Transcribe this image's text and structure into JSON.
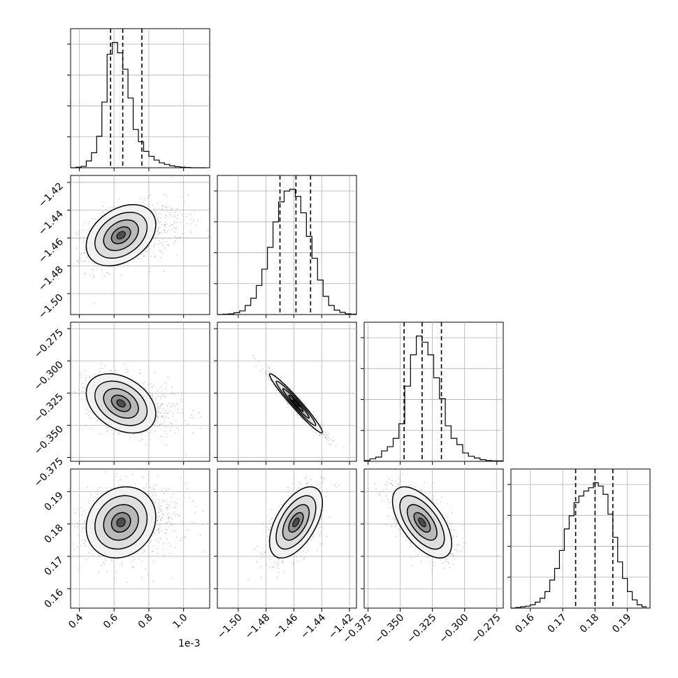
{
  "chart_data": {
    "type": "corner",
    "grid": true,
    "x_offset_label": "1e-3",
    "parameters": [
      {
        "range": [
          0.35,
          1.15
        ],
        "ticks": [
          "0.4",
          "0.6",
          "0.8",
          "1.0"
        ],
        "tick_values": [
          0.4,
          0.6,
          0.8,
          1.0
        ],
        "quantiles": [
          0.58,
          0.65,
          0.76
        ],
        "hist_bins": [
          0.35,
          0.38,
          0.41,
          0.44,
          0.47,
          0.5,
          0.53,
          0.56,
          0.59,
          0.62,
          0.65,
          0.68,
          0.71,
          0.74,
          0.77,
          0.8,
          0.83,
          0.86,
          0.89,
          0.92,
          0.95,
          0.98,
          1.01,
          1.04,
          1.07,
          1.1,
          1.13
        ],
        "hist_counts": [
          0,
          2,
          5,
          25,
          55,
          115,
          240,
          415,
          458,
          420,
          360,
          255,
          140,
          95,
          60,
          42,
          28,
          18,
          12,
          7,
          4,
          2,
          1,
          0,
          0,
          0
        ]
      },
      {
        "range": [
          -1.515,
          -1.415
        ],
        "ticks": [
          "−1.50",
          "−1.48",
          "−1.46",
          "−1.44",
          "−1.42"
        ],
        "tick_values": [
          -1.5,
          -1.48,
          -1.46,
          -1.44,
          -1.42
        ],
        "quantiles": [
          -1.47,
          -1.4585,
          -1.448
        ],
        "hist_bins": [
          -1.515,
          -1.511,
          -1.507,
          -1.503,
          -1.499,
          -1.495,
          -1.491,
          -1.487,
          -1.483,
          -1.479,
          -1.475,
          -1.471,
          -1.467,
          -1.463,
          -1.459,
          -1.455,
          -1.451,
          -1.447,
          -1.443,
          -1.439,
          -1.435,
          -1.431,
          -1.427,
          -1.423,
          -1.419,
          -1.415
        ],
        "hist_counts": [
          0,
          1,
          2,
          5,
          10,
          25,
          45,
          80,
          125,
          185,
          255,
          310,
          340,
          345,
          325,
          280,
          215,
          155,
          95,
          50,
          25,
          12,
          6,
          2,
          1
        ]
      },
      {
        "range": [
          -0.378,
          -0.27
        ],
        "ticks": [
          "−0.375",
          "−0.350",
          "−0.325",
          "−0.300",
          "−0.275"
        ],
        "tick_values": [
          -0.375,
          -0.35,
          -0.325,
          -0.3,
          -0.275
        ],
        "quantiles": [
          -0.347,
          -0.333,
          -0.318
        ],
        "hist_bins": [
          -0.378,
          -0.3735,
          -0.369,
          -0.3645,
          -0.36,
          -0.3555,
          -0.351,
          -0.3465,
          -0.342,
          -0.3375,
          -0.333,
          -0.3285,
          -0.324,
          -0.3195,
          -0.315,
          -0.3105,
          -0.306,
          -0.3015,
          -0.297,
          -0.2925,
          -0.288,
          -0.2835,
          -0.279,
          -0.2745,
          -0.27
        ],
        "hist_counts": [
          2,
          6,
          10,
          25,
          35,
          55,
          90,
          180,
          255,
          300,
          285,
          255,
          200,
          150,
          85,
          55,
          40,
          20,
          12,
          8,
          4,
          2,
          1,
          1
        ]
      },
      {
        "range": [
          0.154,
          0.197
        ],
        "ticks": [
          "0.16",
          "0.17",
          "0.18",
          "0.19"
        ],
        "tick_values": [
          0.16,
          0.17,
          0.18,
          0.19
        ],
        "quantiles": [
          0.174,
          0.18,
          0.1855
        ],
        "hist_bins": [
          0.154,
          0.1555,
          0.157,
          0.1585,
          0.16,
          0.1615,
          0.163,
          0.1645,
          0.166,
          0.1675,
          0.169,
          0.1705,
          0.172,
          0.1735,
          0.175,
          0.1765,
          0.178,
          0.1795,
          0.181,
          0.1825,
          0.184,
          0.1855,
          0.187,
          0.1885,
          0.19,
          0.1915,
          0.193,
          0.1945,
          0.196
        ],
        "hist_counts": [
          0,
          2,
          4,
          6,
          10,
          18,
          30,
          50,
          85,
          120,
          175,
          240,
          280,
          320,
          340,
          355,
          365,
          380,
          370,
          345,
          285,
          215,
          140,
          90,
          50,
          25,
          10,
          4
        ]
      }
    ],
    "pairs": [
      {
        "row": 1,
        "col": 0,
        "mean": [
          0.64,
          -1.458
        ],
        "sd": [
          0.1,
          0.011
        ],
        "corr": 0.35
      },
      {
        "row": 2,
        "col": 0,
        "mean": [
          0.64,
          -0.333
        ],
        "sd": [
          0.1,
          0.0115
        ],
        "corr": -0.35
      },
      {
        "row": 2,
        "col": 1,
        "mean": [
          -1.4585,
          -0.333
        ],
        "sd": [
          0.0095,
          0.0115
        ],
        "corr": -0.97
      },
      {
        "row": 3,
        "col": 0,
        "mean": [
          0.64,
          0.1805
        ],
        "sd": [
          0.1,
          0.0055
        ],
        "corr": 0.15
      },
      {
        "row": 3,
        "col": 1,
        "mean": [
          -1.4585,
          0.1805
        ],
        "sd": [
          0.0095,
          0.0055
        ],
        "corr": 0.55
      },
      {
        "row": 3,
        "col": 2,
        "mean": [
          -0.333,
          0.1805
        ],
        "sd": [
          0.0115,
          0.0055
        ],
        "corr": -0.6
      }
    ]
  },
  "colors": {
    "line": "#000000",
    "grid": "#b0b0b0",
    "scatter": "#9a9a9a"
  }
}
